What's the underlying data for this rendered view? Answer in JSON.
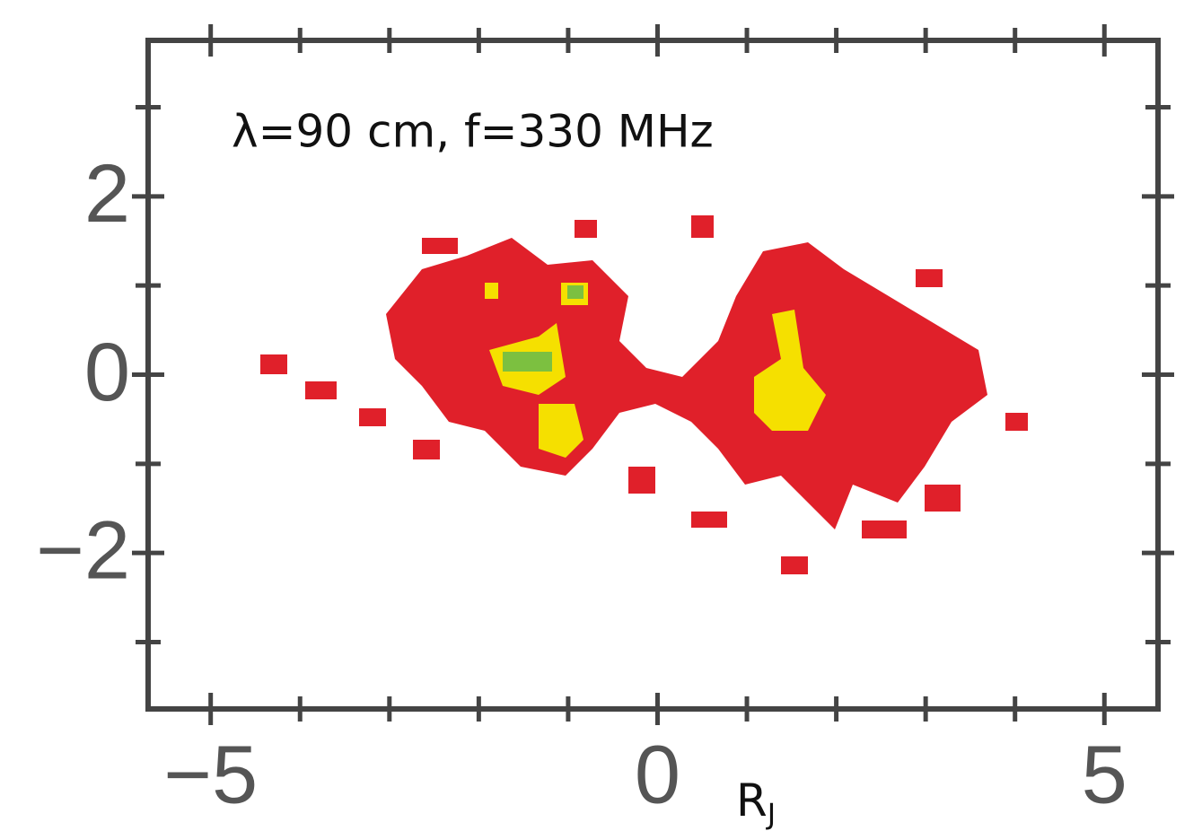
{
  "chart_data": {
    "type": "image",
    "annotation": "λ=90 cm, f=330 MHz",
    "xlabel": "R",
    "xlabel_subscript": "J",
    "xlim": [
      -5.7,
      5.6
    ],
    "ylim": [
      -3.75,
      3.75
    ],
    "xticks": [
      {
        "value": -5,
        "label": "−5"
      },
      0,
      5
    ],
    "yticks": [
      2,
      0,
      {
        "value": -2,
        "label": "−2"
      }
    ],
    "xminor_ticks": [
      -4,
      -3,
      -2,
      -1,
      1,
      2,
      3,
      4
    ],
    "yminor_ticks": [
      3,
      1,
      -1,
      -3
    ],
    "axis_color": "#444"
  }
}
